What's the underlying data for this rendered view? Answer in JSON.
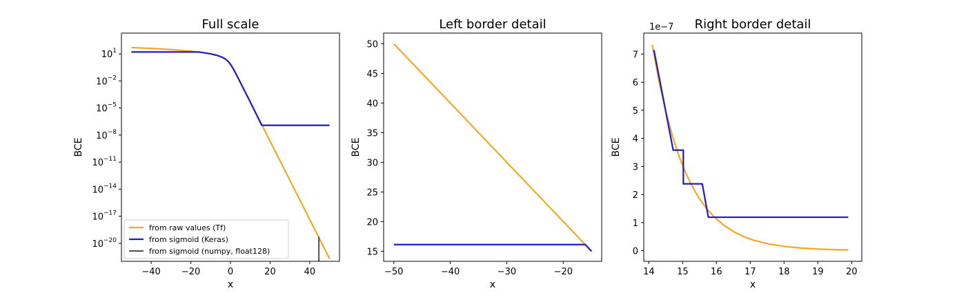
{
  "chart_data": [
    {
      "type": "line",
      "title": "Full scale",
      "xlabel": "x",
      "ylabel": "BCE",
      "yscale": "log",
      "xlim": [
        -55,
        55
      ],
      "ylim": [
        1e-22,
        2000
      ],
      "xticks": [
        "−40",
        "−20",
        "0",
        "20",
        "40"
      ],
      "xtick_values": [
        -40,
        -20,
        0,
        20,
        40
      ],
      "yticks": [
        {
          "value": 10,
          "base": "10",
          "exp": "1"
        },
        {
          "value": 0.01,
          "base": "10",
          "exp": "−2"
        },
        {
          "value": 1e-05,
          "base": "10",
          "exp": "−5"
        },
        {
          "value": 1e-08,
          "base": "10",
          "exp": "−8"
        },
        {
          "value": 1e-11,
          "base": "10",
          "exp": "−11"
        },
        {
          "value": 1e-14,
          "base": "10",
          "exp": "−14"
        },
        {
          "value": 1e-17,
          "base": "10",
          "exp": "−17"
        },
        {
          "value": 1e-20,
          "base": "10",
          "exp": "−20"
        }
      ],
      "legend": {
        "placement": "lower-left",
        "entries": [
          {
            "label": "from raw values (Tf)",
            "color": "#f5a623"
          },
          {
            "label": "from sigmoid (Keras)",
            "color": "#1c1cc8"
          },
          {
            "label": "from sigmoid (numpy, float128)",
            "color": "#555555"
          }
        ]
      },
      "series": [
        {
          "name": "from raw values (Tf)",
          "color": "#f5a623",
          "x": [
            -50,
            -40,
            -30,
            -20,
            -15,
            -10,
            -7,
            -5,
            -4,
            -3,
            -2,
            -1,
            0,
            1,
            2,
            3,
            5,
            10,
            15,
            20,
            30,
            40,
            50
          ],
          "y": [
            50,
            40,
            30,
            20,
            15,
            10,
            7.0009,
            5.0067,
            4.018,
            3.0486,
            2.1269,
            1.3133,
            0.6931,
            0.3133,
            0.1269,
            0.0486,
            0.0067,
            4.54e-05,
            3.06e-07,
            2.06e-09,
            9.36e-14,
            4.25e-18,
            1.93e-22
          ]
        },
        {
          "name": "from sigmoid (Keras)",
          "color": "#1c1cc8",
          "x": [
            -50,
            -40,
            -30,
            -20,
            -16.1,
            -15,
            -10,
            -7,
            -5,
            -4,
            -3,
            -2,
            -1,
            0,
            1,
            2,
            3,
            5,
            10,
            15.8,
            20,
            30,
            40,
            50
          ],
          "y": [
            16.12,
            16.12,
            16.12,
            16.12,
            16.12,
            15,
            10,
            7.0009,
            5.0067,
            4.018,
            3.0486,
            2.1269,
            1.3133,
            0.6931,
            0.3133,
            0.1269,
            0.0486,
            0.0067,
            4.54e-05,
            1.19e-07,
            1.19e-07,
            1.19e-07,
            1.19e-07,
            1.19e-07
          ]
        },
        {
          "name": "from sigmoid (numpy, float128)",
          "color": "#555555",
          "x": [
            44.5,
            44.5,
            44.7,
            44.7
          ],
          "y": [
            1e-22,
            5e-20,
            5e-20,
            1e-22
          ]
        }
      ]
    },
    {
      "type": "line",
      "title": "Left border detail",
      "xlabel": "x",
      "ylabel": "BCE",
      "xlim": [
        -51.8,
        -13.2
      ],
      "ylim": [
        13.3,
        51.8
      ],
      "xticks": [
        "−50",
        "−40",
        "−30",
        "−20"
      ],
      "xtick_values": [
        -50,
        -40,
        -30,
        -20
      ],
      "yticks": [
        "15",
        "20",
        "25",
        "30",
        "35",
        "40",
        "45",
        "50"
      ],
      "ytick_values": [
        15,
        20,
        25,
        30,
        35,
        40,
        45,
        50
      ],
      "series": [
        {
          "name": "from raw values (Tf)",
          "color": "#f5a623",
          "x": [
            -50,
            -15
          ],
          "y": [
            50,
            15
          ]
        },
        {
          "name": "from sigmoid (Keras)",
          "color": "#1c1cc8",
          "x": [
            -50,
            -16.1,
            -15
          ],
          "y": [
            16.12,
            16.12,
            15
          ]
        }
      ]
    },
    {
      "type": "line",
      "title": "Right border detail",
      "xlabel": "x",
      "ylabel": "BCE",
      "offset_text": "1e−7",
      "xlim": [
        13.85,
        20.3
      ],
      "ylim": [
        -0.38,
        7.75
      ],
      "xticks": [
        "14",
        "15",
        "16",
        "17",
        "18",
        "19",
        "20"
      ],
      "xtick_values": [
        14,
        15,
        16,
        17,
        18,
        19,
        20
      ],
      "yticks": [
        "0",
        "1",
        "2",
        "3",
        "4",
        "5",
        "6",
        "7"
      ],
      "ytick_values": [
        0,
        1,
        2,
        3,
        4,
        5,
        6,
        7
      ],
      "series": [
        {
          "name": "from raw values (Tf)",
          "color": "#f5a623",
          "x": [
            14.1,
            14.3,
            14.5,
            14.7,
            14.9,
            15.1,
            15.3,
            15.5,
            15.7,
            15.9,
            16.2,
            16.5,
            16.8,
            17.1,
            17.5,
            18,
            18.5,
            19,
            19.5,
            19.9
          ],
          "y": [
            7.33,
            6.03,
            4.97,
            4.08,
            3.34,
            2.74,
            2.25,
            1.84,
            1.51,
            1.24,
            0.92,
            0.68,
            0.5,
            0.37,
            0.25,
            0.152,
            0.092,
            0.056,
            0.034,
            0.023
          ]
        },
        {
          "name": "from sigmoid (Keras)",
          "color": "#1c1cc8",
          "x": [
            14.15,
            14.72,
            14.72,
            15.02,
            15.02,
            15.58,
            15.58,
            15.76,
            15.76,
            19.9
          ],
          "y": [
            7.15,
            3.58,
            3.58,
            3.58,
            2.38,
            2.38,
            2.38,
            1.19,
            1.19,
            1.19
          ]
        }
      ]
    }
  ]
}
